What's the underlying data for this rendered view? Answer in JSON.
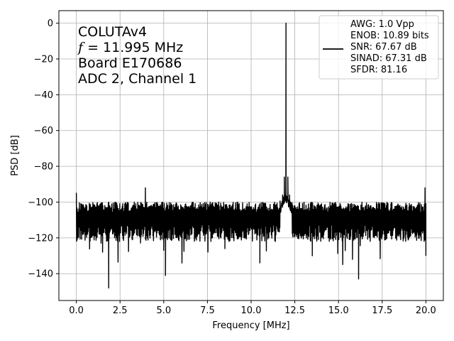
{
  "chart_data": {
    "type": "line",
    "title": "",
    "xlabel": "Frequency [MHz]",
    "ylabel": "PSD [dB]",
    "xlim": [
      -1.0,
      21.0
    ],
    "ylim": [
      -155,
      7
    ],
    "xticks": [
      0.0,
      2.5,
      5.0,
      7.5,
      10.0,
      12.5,
      15.0,
      17.5,
      20.0
    ],
    "xtick_labels": [
      "0.0",
      "2.5",
      "5.0",
      "7.5",
      "10.0",
      "12.5",
      "15.0",
      "17.5",
      "20.0"
    ],
    "yticks": [
      0,
      -20,
      -40,
      -60,
      -80,
      -100,
      -120,
      -140
    ],
    "ytick_labels": [
      "0",
      "−20",
      "−40",
      "−60",
      "−80",
      "−100",
      "−120",
      "−140"
    ],
    "grid": true,
    "line_color": "#000000",
    "annotation_lines": [
      "COLUTAv4",
      "f = 11.995 MHz",
      "Board E170686",
      "ADC 2, Channel 1"
    ],
    "annotation_f": {
      "symbol": "f",
      "rest": " = 11.995 MHz"
    },
    "legend": {
      "placement": "upper right",
      "lines": [
        "AWG: 1.0 Vpp",
        "ENOB: 10.89 bits",
        "SNR: 67.67 dB",
        "SINAD: 67.31 dB",
        "SFDR: 81.16"
      ]
    },
    "series": [
      {
        "name": "AWG: 1.0 Vpp",
        "noise_floor": {
          "x_start": 0.0,
          "x_end": 20.0,
          "upper": -100,
          "lower": -122,
          "typical": -112
        },
        "x": [
          0.0,
          0.05,
          0.1,
          0.15,
          1.5,
          1.85,
          3.0,
          3.95,
          4.5,
          5.0,
          5.1,
          6.5,
          8.0,
          8.5,
          10.0,
          10.5,
          11.5,
          11.8,
          11.9,
          11.995,
          12.1,
          12.2,
          12.5,
          13.5,
          15.0,
          15.8,
          16.15,
          17.0,
          18.0,
          19.9,
          19.95,
          20.0
        ],
        "y": [
          -95,
          -104,
          -120,
          -110,
          -128,
          -148,
          -112,
          -92,
          -110,
          -127,
          -141,
          -113,
          -112,
          -126,
          -112,
          -134,
          -104,
          -96,
          -86,
          0,
          -86,
          -96,
          -102,
          -130,
          -111,
          -132,
          -143,
          -118,
          -112,
          -108,
          -92,
          -130
        ]
      }
    ]
  }
}
